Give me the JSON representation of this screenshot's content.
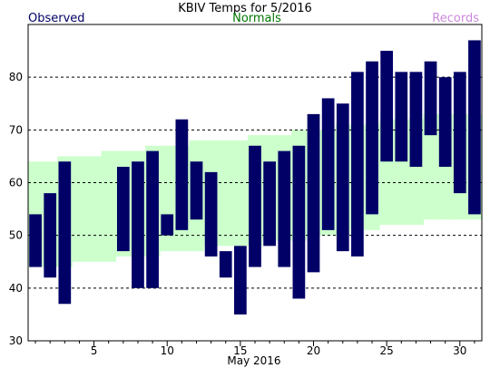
{
  "header": {
    "title": "KBIV Temps for 5/2016",
    "legend_observed": "Observed",
    "legend_normals": "Normals",
    "legend_records": "Records"
  },
  "colors": {
    "observed": "#000066",
    "normals": "#ccffcc",
    "normals_label": "#007700",
    "records_label": "#cc88dd",
    "grid": "#000000",
    "background": "#ffffff"
  },
  "chart_data": {
    "type": "bar",
    "title": "KBIV Temps for 5/2016",
    "xlabel": "May 2016",
    "ylabel": "",
    "xlim": [
      1,
      31
    ],
    "ylim": [
      30,
      90
    ],
    "yticks": [
      30,
      40,
      50,
      60,
      70,
      80
    ],
    "xtick_labels": [
      5,
      10,
      15,
      20,
      25,
      30
    ],
    "grid": "horizontal dashed at y ticks",
    "legend": [
      "Observed",
      "Normals",
      "Records"
    ],
    "legend_placement": "top",
    "series": [
      {
        "name": "Observed",
        "kind": "floating-bar",
        "days": [
          1,
          2,
          3,
          4,
          5,
          6,
          7,
          8,
          9,
          10,
          11,
          12,
          13,
          14,
          15,
          16,
          17,
          18,
          19,
          20,
          21,
          22,
          23,
          24,
          25,
          26,
          27,
          28,
          29,
          30,
          31
        ],
        "high": [
          54,
          58,
          64,
          null,
          null,
          null,
          63,
          64,
          66,
          54,
          72,
          64,
          62,
          47,
          48,
          67,
          64,
          66,
          67,
          73,
          76,
          75,
          81,
          83,
          85,
          81,
          81,
          83,
          80,
          81,
          87
        ],
        "low": [
          44,
          42,
          37,
          null,
          null,
          null,
          47,
          40,
          40,
          50,
          51,
          53,
          46,
          42,
          35,
          44,
          48,
          44,
          38,
          43,
          51,
          47,
          46,
          54,
          64,
          64,
          63,
          69,
          63,
          58,
          54
        ]
      },
      {
        "name": "Normals",
        "kind": "band",
        "days": [
          1,
          2,
          3,
          4,
          5,
          6,
          7,
          8,
          9,
          10,
          11,
          12,
          13,
          14,
          15,
          16,
          17,
          18,
          19,
          20,
          21,
          22,
          23,
          24,
          25,
          26,
          27,
          28,
          29,
          30,
          31
        ],
        "high": [
          64,
          64,
          65,
          65,
          65,
          66,
          66,
          66,
          67,
          67,
          67,
          68,
          68,
          68,
          68,
          69,
          69,
          69,
          70,
          70,
          70,
          71,
          71,
          71,
          72,
          72,
          72,
          73,
          73,
          73,
          73
        ],
        "low": [
          44,
          44,
          44,
          45,
          45,
          45,
          46,
          46,
          46,
          47,
          47,
          47,
          48,
          48,
          48,
          48,
          49,
          49,
          49,
          50,
          50,
          50,
          51,
          51,
          52,
          52,
          52,
          53,
          53,
          53,
          53
        ]
      }
    ]
  }
}
